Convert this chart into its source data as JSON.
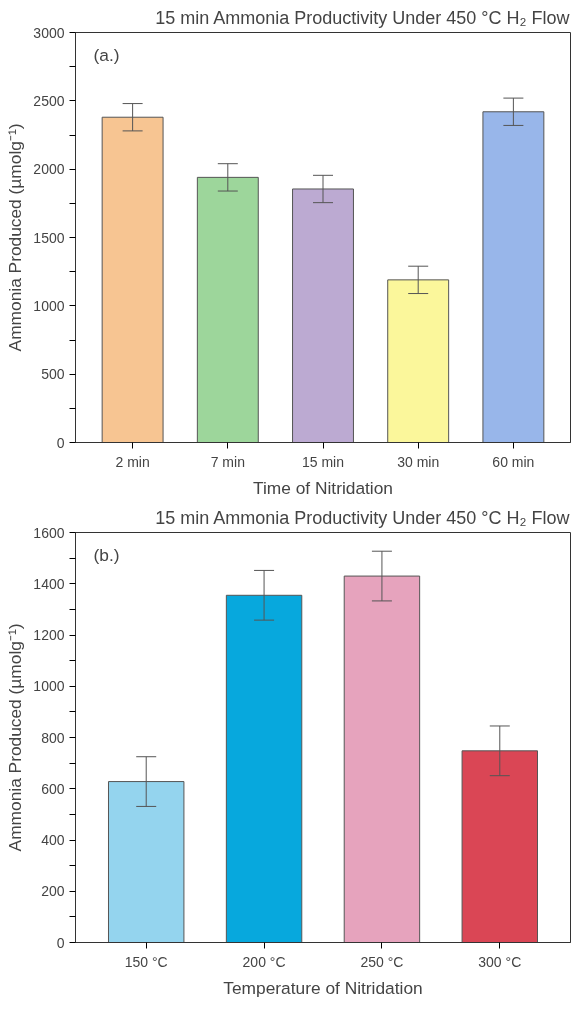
{
  "chart_data": [
    {
      "type": "bar",
      "title": "15 min Ammonia Productivity Under 450 °C H₂ Flow",
      "xlabel": "Time of Nitridation",
      "ylabel": "Ammonia Produced (µmolg⁻¹)",
      "annotations": [
        "(a.)"
      ],
      "categories": [
        "2 min",
        "7 min",
        "15 min",
        "30 min",
        "60 min"
      ],
      "values": [
        2380,
        1940,
        1855,
        1190,
        2420
      ],
      "colors": [
        "#f7c592",
        "#9dd69b",
        "#bcaad2",
        "#fbf79b",
        "#98b6ea"
      ],
      "errors": [
        100,
        100,
        100,
        100,
        100
      ],
      "ylim": [
        0,
        3000
      ],
      "yticks": [
        0,
        {
          "value": 250,
          "label": null
        },
        500,
        {
          "value": 750,
          "label": null
        },
        1000,
        {
          "value": 1250,
          "label": null
        },
        1500,
        {
          "value": 1750,
          "label": null
        },
        2000,
        {
          "value": 2250,
          "label": null
        },
        2500,
        {
          "value": 2750,
          "label": null
        },
        3000
      ],
      "grid": false
    },
    {
      "type": "bar",
      "title": "15 min Ammonia Productivity Under 450 °C H₂ Flow",
      "xlabel": "Temperature of Nitridation",
      "ylabel": "Ammonia Produced (µmolg⁻¹)",
      "annotations": [
        "(b.)"
      ],
      "categories": [
        "150 °C",
        "200 °C",
        "250 °C",
        "300 °C"
      ],
      "values": [
        628,
        1355,
        1430,
        748
      ],
      "colors": [
        "#94d4ee",
        "#07a8dd",
        "#e6a3bd",
        "#da4655"
      ],
      "errors": [
        97,
        97,
        97,
        97
      ],
      "ylim": [
        0,
        1600
      ],
      "yticks": [
        0,
        {
          "value": 100,
          "label": null
        },
        200,
        {
          "value": 300,
          "label": null
        },
        400,
        {
          "value": 500,
          "label": null
        },
        600,
        {
          "value": 700,
          "label": null
        },
        800,
        {
          "value": 900,
          "label": null
        },
        1000,
        {
          "value": 1100,
          "label": null
        },
        1200,
        {
          "value": 1300,
          "label": null
        },
        1400,
        {
          "value": 1500,
          "label": null
        },
        1600
      ],
      "grid": false
    }
  ]
}
